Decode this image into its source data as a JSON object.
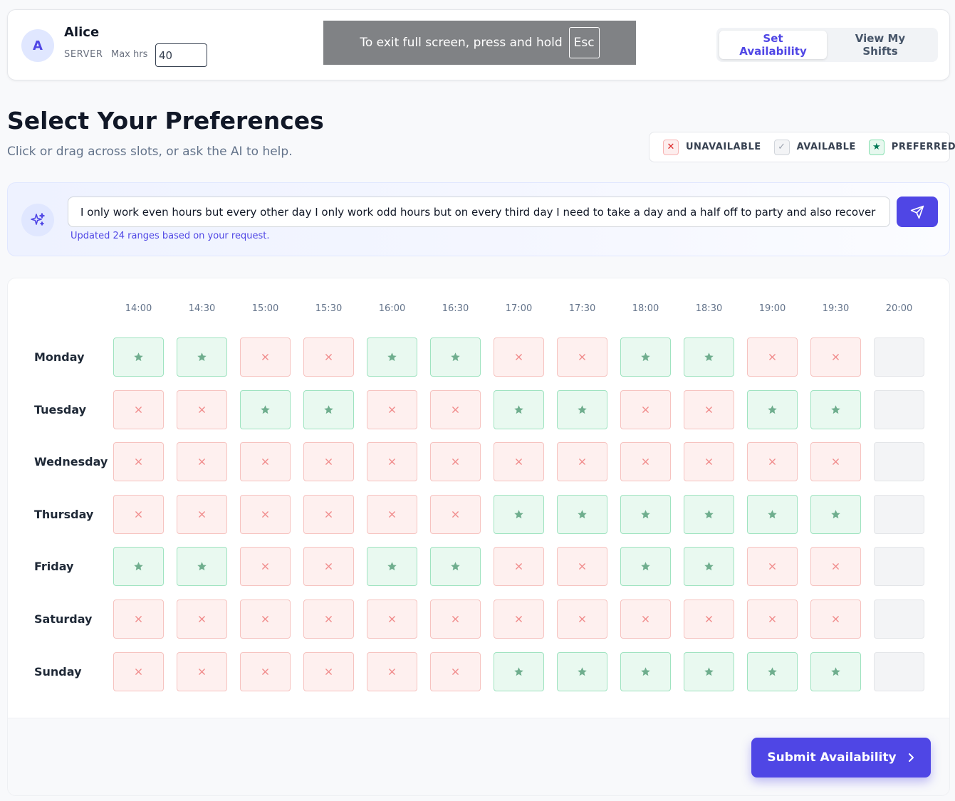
{
  "header": {
    "avatar_initial": "A",
    "user_name": "Alice",
    "role": "SERVER",
    "max_hours_label": "Max hrs",
    "max_hours_value": "40",
    "fullscreen_text": "To exit full screen, press and hold",
    "fullscreen_key": "Esc",
    "tabs": [
      {
        "label": "Set Availability",
        "active": true
      },
      {
        "label": "View My Shifts",
        "active": false
      }
    ]
  },
  "page": {
    "title": "Select Your Preferences",
    "subtitle": "Click or drag across slots, or ask the AI to help."
  },
  "legend": [
    {
      "label": "UNAVAILABLE",
      "symbol": "✕",
      "state": "U"
    },
    {
      "label": "AVAILABLE",
      "symbol": "✓",
      "state": "A"
    },
    {
      "label": "PREFERRED",
      "symbol": "★",
      "state": "P"
    }
  ],
  "ai": {
    "prompt_value": "I only work even hours but every other day I only work odd hours but on every third day I need to take a day and a half off to party and also recover",
    "status": "Updated 24 ranges based on your request.",
    "icon": "sparkles-icon",
    "send_icon": "send-icon"
  },
  "grid": {
    "times": [
      "14:00",
      "14:30",
      "15:00",
      "15:30",
      "16:00",
      "16:30",
      "17:00",
      "17:30",
      "18:00",
      "18:30",
      "19:00",
      "19:30",
      "20:00"
    ],
    "days": [
      {
        "name": "Monday",
        "slots": [
          "P",
          "P",
          "U",
          "U",
          "P",
          "P",
          "U",
          "U",
          "P",
          "P",
          "U",
          "U",
          "A"
        ]
      },
      {
        "name": "Tuesday",
        "slots": [
          "U",
          "U",
          "P",
          "P",
          "U",
          "U",
          "P",
          "P",
          "U",
          "U",
          "P",
          "P",
          "A"
        ]
      },
      {
        "name": "Wednesday",
        "slots": [
          "U",
          "U",
          "U",
          "U",
          "U",
          "U",
          "U",
          "U",
          "U",
          "U",
          "U",
          "U",
          "A"
        ]
      },
      {
        "name": "Thursday",
        "slots": [
          "U",
          "U",
          "U",
          "U",
          "U",
          "U",
          "P",
          "P",
          "P",
          "P",
          "P",
          "P",
          "A"
        ]
      },
      {
        "name": "Friday",
        "slots": [
          "P",
          "P",
          "U",
          "U",
          "P",
          "P",
          "U",
          "U",
          "P",
          "P",
          "U",
          "U",
          "A"
        ]
      },
      {
        "name": "Saturday",
        "slots": [
          "U",
          "U",
          "U",
          "U",
          "U",
          "U",
          "U",
          "U",
          "U",
          "U",
          "U",
          "U",
          "A"
        ]
      },
      {
        "name": "Sunday",
        "slots": [
          "U",
          "U",
          "U",
          "U",
          "U",
          "U",
          "P",
          "P",
          "P",
          "P",
          "P",
          "P",
          "A"
        ]
      }
    ],
    "symbols": {
      "U": "✕",
      "P": "★",
      "A": ""
    }
  },
  "submit_label": "Submit Availability",
  "colors": {
    "accent": "#4f46e5",
    "unavailable": "#f08a8a",
    "preferred": "#6fae8e"
  }
}
